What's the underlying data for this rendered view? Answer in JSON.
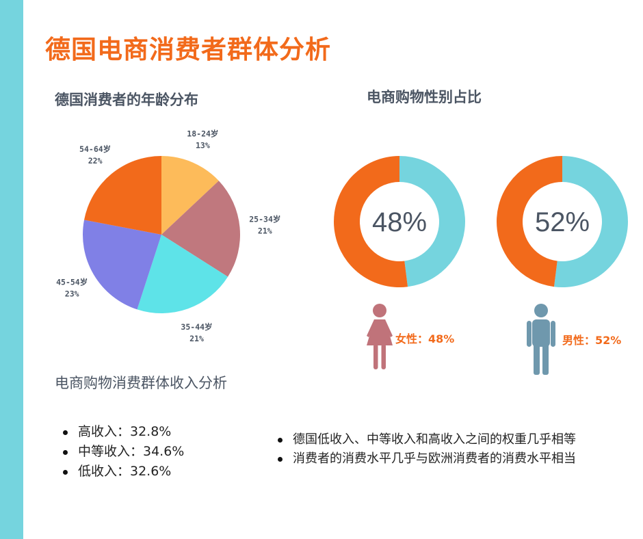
{
  "title": "德国电商消费者群体分析",
  "age_section": {
    "title": "德国消费者的年龄分布"
  },
  "gender_section": {
    "title": "电商购物性别占比",
    "female_label": "女性：48%",
    "male_label": "男性：52%"
  },
  "income_section": {
    "title": "电商购物消费群体收入分析",
    "items": [
      "高收入：32.8%",
      "中等收入：34.6%",
      "低收入：32.6%"
    ]
  },
  "notes": [
    "德国低收入、中等收入和高收入之间的权重几乎相等",
    "消费者的消费水平几乎与欧洲消费者的消费水平相当"
  ],
  "colors": {
    "accent": "#f26a1b",
    "sidebar": "#75d4de",
    "teal": "#75d4de",
    "female_icon": "#c0737a",
    "male_icon": "#6f98ad"
  },
  "chart_data": [
    {
      "type": "pie",
      "title": "德国消费者的年龄分布",
      "categories": [
        "18-24岁",
        "25-34岁",
        "35-44岁",
        "45-54岁",
        "54-64岁"
      ],
      "values": [
        13,
        21,
        21,
        23,
        22
      ],
      "value_labels": [
        "13%",
        "21%",
        "21%",
        "23%",
        "22%"
      ],
      "colors": [
        "#fdbb5a",
        "#c0787e",
        "#5ee3e8",
        "#8080e6",
        "#f26a1b"
      ]
    },
    {
      "type": "pie",
      "title": "电商购物性别占比",
      "categories": [
        "女性",
        "男性"
      ],
      "values": [
        48,
        52
      ],
      "value_labels": [
        "48%",
        "52%"
      ],
      "donuts": [
        {
          "center_label": "48%",
          "orange": 52,
          "teal": 48
        },
        {
          "center_label": "52%",
          "orange": 48,
          "teal": 52
        }
      ]
    }
  ]
}
